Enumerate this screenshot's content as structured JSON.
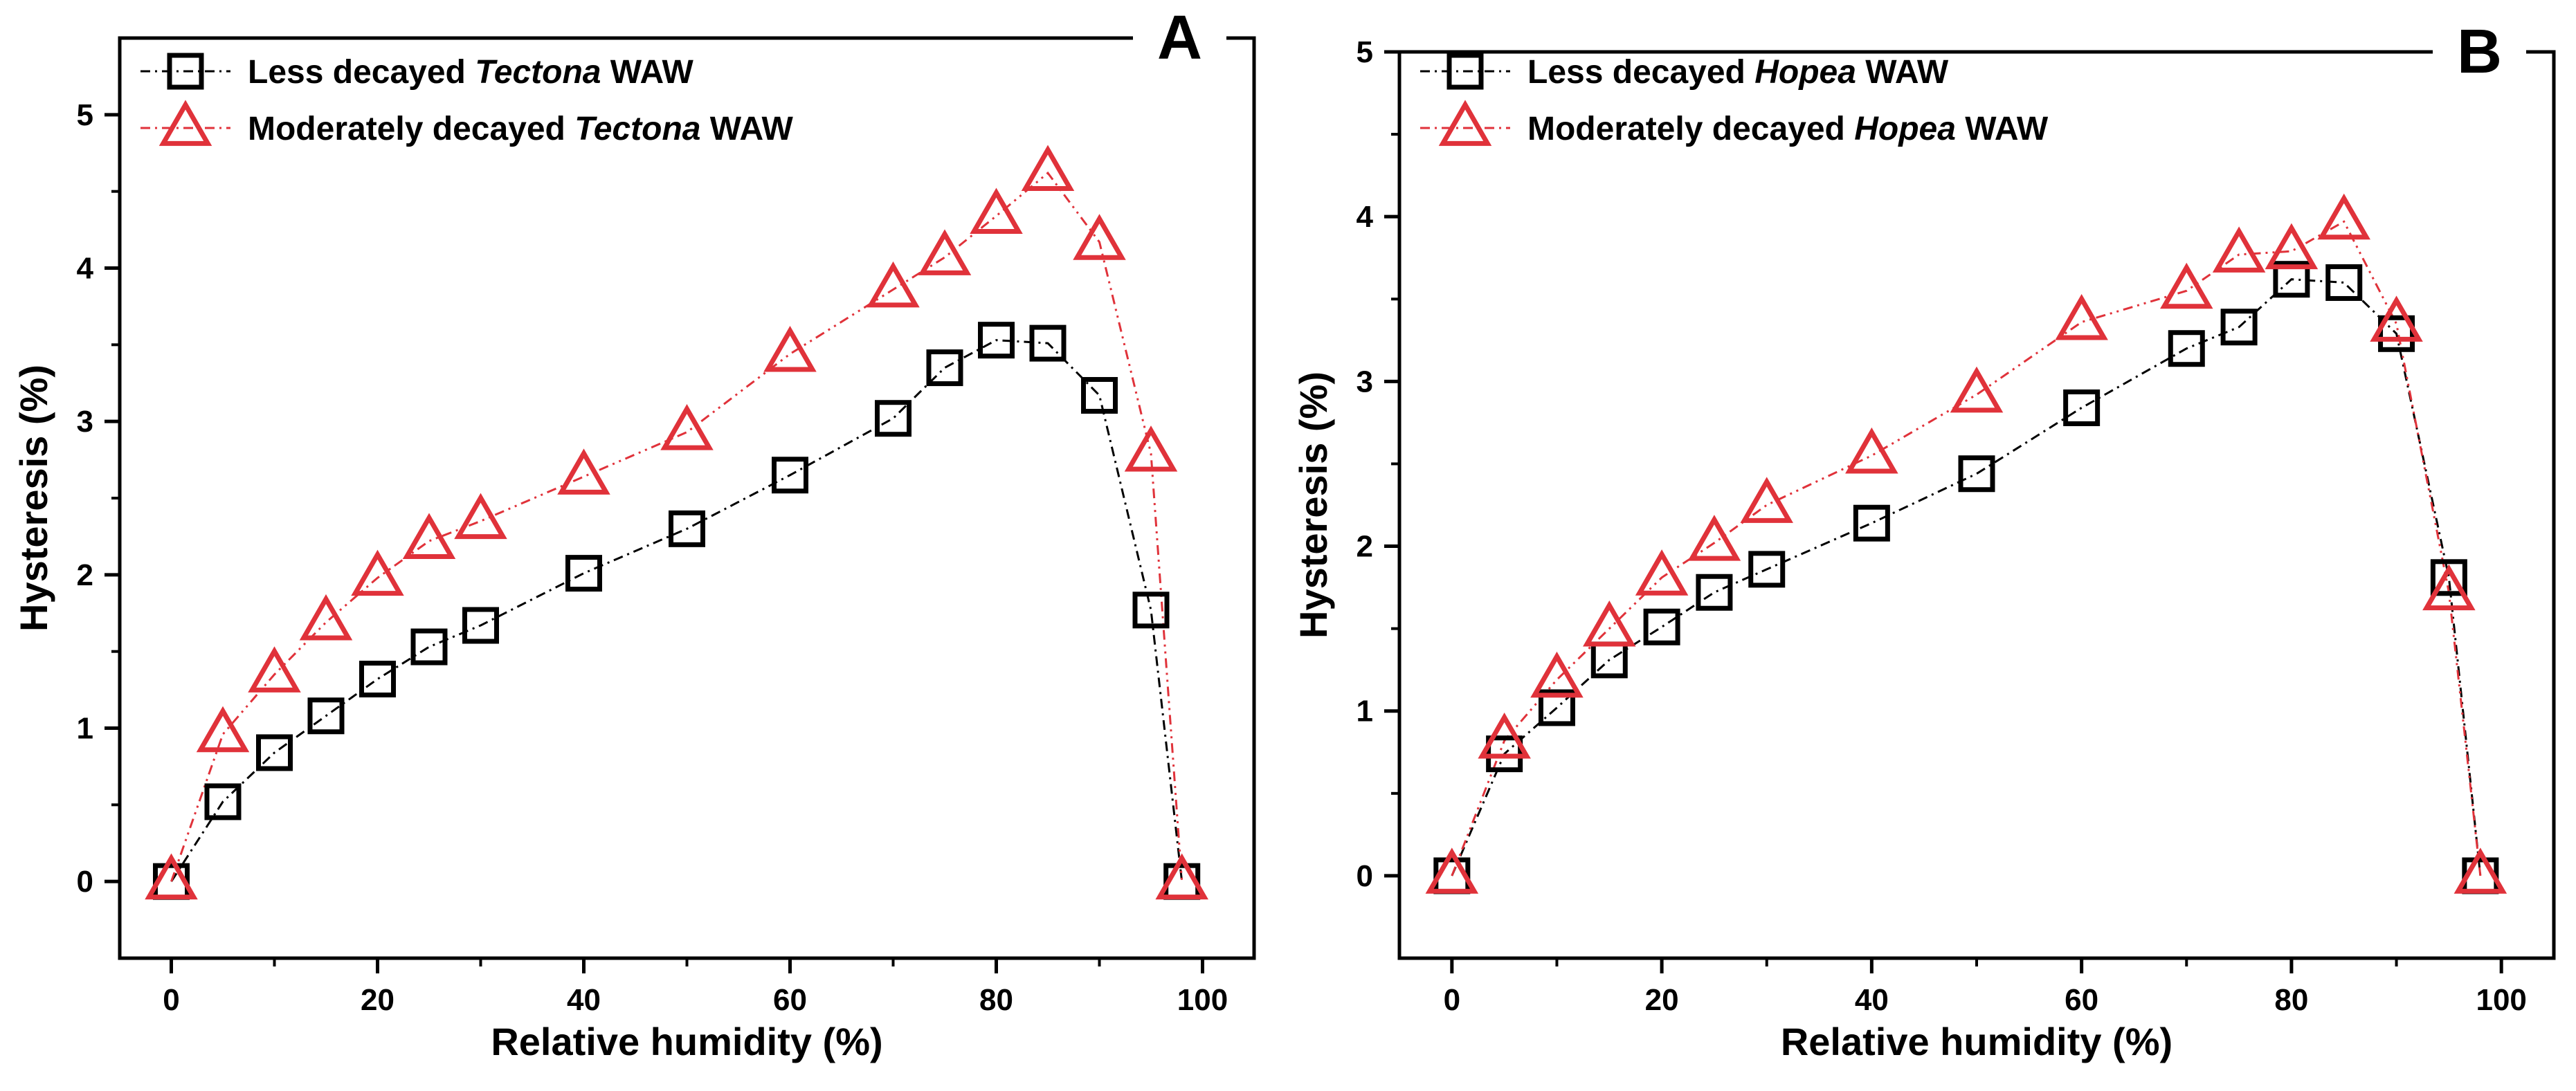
{
  "chart_data": [
    {
      "type": "line",
      "panel_label": "A",
      "xlabel": "Relative humidity (%)",
      "ylabel": "Hysteresis (%)",
      "xlim": [
        -5,
        105
      ],
      "ylim": [
        -0.5,
        5.5
      ],
      "xticks": [
        0,
        20,
        40,
        60,
        80,
        100
      ],
      "yticks": [
        0,
        1,
        2,
        3,
        4,
        5
      ],
      "grid": false,
      "legend_position": "top-left",
      "series": [
        {
          "legend_parts": [
            "Less decayed ",
            "Tectona",
            " WAW"
          ],
          "marker": "square",
          "color": "#000000",
          "x": [
            0,
            5,
            10,
            15,
            20,
            25,
            30,
            40,
            50,
            60,
            70,
            75,
            80,
            85,
            90,
            95,
            98
          ],
          "y": [
            0,
            0.52,
            0.84,
            1.08,
            1.32,
            1.53,
            1.67,
            2.01,
            2.3,
            2.65,
            3.02,
            3.35,
            3.53,
            3.51,
            3.17,
            1.77,
            0
          ]
        },
        {
          "legend_parts": [
            "Moderately decayed ",
            "Tectona",
            " WAW"
          ],
          "marker": "triangle",
          "color": "#e0323a",
          "x": [
            0,
            5,
            10,
            15,
            20,
            25,
            30,
            40,
            50,
            60,
            70,
            75,
            80,
            85,
            90,
            95,
            98
          ],
          "y": [
            0,
            0.96,
            1.35,
            1.69,
            1.98,
            2.22,
            2.35,
            2.64,
            2.93,
            3.44,
            3.86,
            4.07,
            4.34,
            4.62,
            4.17,
            2.79,
            0
          ]
        }
      ]
    },
    {
      "type": "line",
      "panel_label": "B",
      "xlabel": "Relative humidity (%)",
      "ylabel": "Hysteresis (%)",
      "xlim": [
        -5,
        105
      ],
      "ylim": [
        -0.5,
        5
      ],
      "xticks": [
        0,
        20,
        40,
        60,
        80,
        100
      ],
      "yticks": [
        0,
        1,
        2,
        3,
        4,
        5
      ],
      "grid": false,
      "legend_position": "top-left",
      "series": [
        {
          "legend_parts": [
            "Less decayed ",
            "Hopea",
            " WAW"
          ],
          "marker": "square",
          "color": "#000000",
          "x": [
            0,
            5,
            10,
            15,
            20,
            25,
            30,
            40,
            50,
            60,
            70,
            75,
            80,
            85,
            90,
            95,
            98
          ],
          "y": [
            0,
            0.74,
            1.02,
            1.31,
            1.51,
            1.72,
            1.86,
            2.14,
            2.44,
            2.84,
            3.2,
            3.33,
            3.62,
            3.6,
            3.29,
            1.81,
            0
          ]
        },
        {
          "legend_parts": [
            "Moderately decayed ",
            "Hopea",
            " WAW"
          ],
          "marker": "triangle",
          "color": "#e0323a",
          "x": [
            0,
            5,
            10,
            15,
            20,
            25,
            30,
            40,
            50,
            60,
            70,
            75,
            80,
            85,
            90,
            95,
            98
          ],
          "y": [
            0,
            0.82,
            1.19,
            1.5,
            1.81,
            2.02,
            2.25,
            2.55,
            2.92,
            3.36,
            3.55,
            3.77,
            3.79,
            3.97,
            3.35,
            1.72,
            0
          ]
        }
      ]
    }
  ]
}
